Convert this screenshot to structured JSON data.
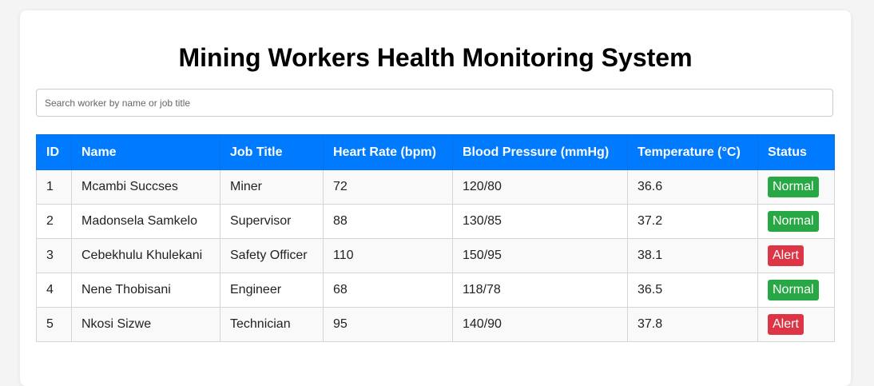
{
  "page": {
    "title": "Mining Workers Health Monitoring System"
  },
  "search": {
    "placeholder": "Search worker by name or job title",
    "value": ""
  },
  "table": {
    "headers": [
      "ID",
      "Name",
      "Job Title",
      "Heart Rate (bpm)",
      "Blood Pressure (mmHg)",
      "Temperature (°C)",
      "Status"
    ],
    "rows": [
      {
        "id": "1",
        "name": "Mcambi Succses",
        "job": "Miner",
        "heart_rate": "72",
        "blood_pressure": "120/80",
        "temperature": "36.6",
        "status": "Normal"
      },
      {
        "id": "2",
        "name": "Madonsela Samkelo",
        "job": "Supervisor",
        "heart_rate": "88",
        "blood_pressure": "130/85",
        "temperature": "37.2",
        "status": "Normal"
      },
      {
        "id": "3",
        "name": "Cebekhulu Khulekani",
        "job": "Safety Officer",
        "heart_rate": "110",
        "blood_pressure": "150/95",
        "temperature": "38.1",
        "status": "Alert"
      },
      {
        "id": "4",
        "name": "Nene Thobisani",
        "job": "Engineer",
        "heart_rate": "68",
        "blood_pressure": "118/78",
        "temperature": "36.5",
        "status": "Normal"
      },
      {
        "id": "5",
        "name": "Nkosi Sizwe",
        "job": "Technician",
        "heart_rate": "95",
        "blood_pressure": "140/90",
        "temperature": "37.8",
        "status": "Alert"
      }
    ]
  },
  "colors": {
    "header_bg": "#007bff",
    "normal": "#28a745",
    "alert": "#dc3545"
  }
}
